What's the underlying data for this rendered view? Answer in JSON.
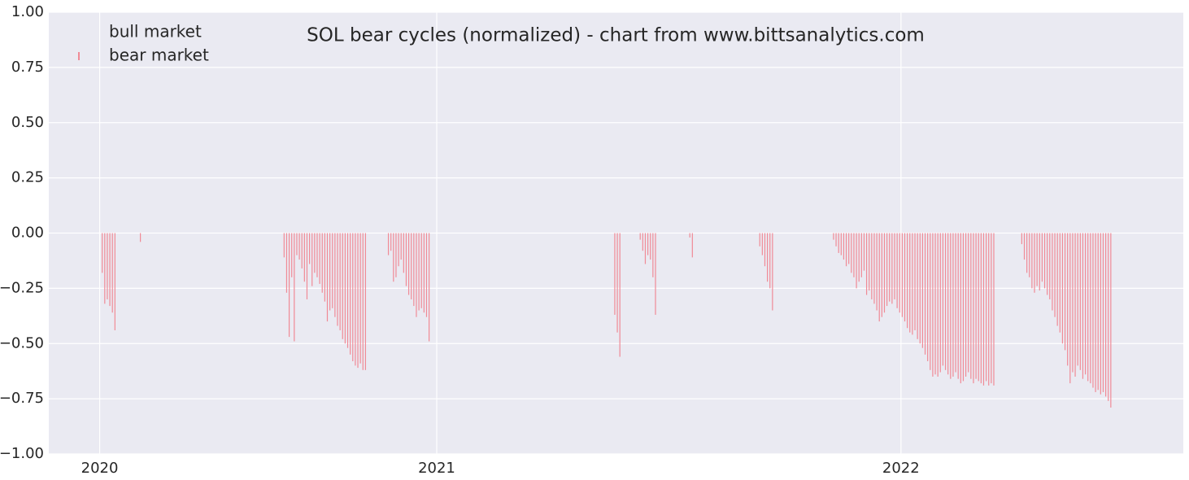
{
  "chart_data": {
    "type": "bar",
    "title": "SOL bear cycles (normalized)  - chart from www.bittsanalytics.com",
    "xlim": [
      0,
      892
    ],
    "xticks": [
      {
        "value": 40,
        "label": "2020"
      },
      {
        "value": 305,
        "label": "2021"
      },
      {
        "value": 670,
        "label": "2022"
      }
    ],
    "ylim": [
      -1,
      1
    ],
    "yticks": [
      {
        "value": -1,
        "label": "−1.00"
      },
      {
        "value": -0.75,
        "label": "−0.75"
      },
      {
        "value": -0.5,
        "label": "−0.50"
      },
      {
        "value": -0.25,
        "label": "−0.25"
      },
      {
        "value": 0,
        "label": "0.00"
      },
      {
        "value": 0.25,
        "label": "0.25"
      },
      {
        "value": 0.5,
        "label": "0.50"
      },
      {
        "value": 0.75,
        "label": "0.75"
      },
      {
        "value": 1,
        "label": "1.00"
      }
    ],
    "grid": true,
    "legend": "upper left",
    "series": [
      {
        "name": "bull market",
        "color": "#eaeaf2",
        "x": [],
        "values": []
      },
      {
        "name": "bear market",
        "color": "#f08a96",
        "x": [
          42,
          44,
          46,
          48,
          50,
          52,
          72,
          185,
          187,
          189,
          191,
          193,
          195,
          197,
          199,
          201,
          203,
          205,
          207,
          209,
          211,
          213,
          215,
          217,
          219,
          221,
          223,
          225,
          227,
          229,
          231,
          233,
          235,
          237,
          239,
          241,
          243,
          245,
          247,
          249,
          267,
          269,
          271,
          273,
          275,
          277,
          279,
          281,
          283,
          285,
          287,
          289,
          291,
          293,
          295,
          297,
          299,
          445,
          447,
          449,
          465,
          467,
          469,
          471,
          473,
          475,
          477,
          504,
          506,
          559,
          561,
          563,
          565,
          567,
          569,
          617,
          619,
          621,
          623,
          625,
          627,
          629,
          631,
          633,
          635,
          637,
          639,
          641,
          643,
          645,
          647,
          649,
          651,
          653,
          655,
          657,
          659,
          661,
          663,
          665,
          667,
          669,
          671,
          673,
          675,
          677,
          679,
          681,
          683,
          685,
          687,
          689,
          691,
          693,
          695,
          697,
          699,
          701,
          703,
          705,
          707,
          709,
          711,
          713,
          715,
          717,
          719,
          721,
          723,
          725,
          727,
          729,
          731,
          733,
          735,
          737,
          739,
          741,
          743,
          765,
          767,
          769,
          771,
          773,
          775,
          777,
          779,
          781,
          783,
          785,
          787,
          789,
          791,
          793,
          795,
          797,
          799,
          801,
          803,
          805,
          807,
          809,
          811,
          813,
          815,
          817,
          819,
          821,
          823,
          825,
          827,
          829,
          831,
          833,
          835
        ],
        "values": [
          -0.18,
          -0.32,
          -0.3,
          -0.33,
          -0.36,
          -0.44,
          -0.04,
          -0.11,
          -0.27,
          -0.47,
          -0.2,
          -0.49,
          -0.1,
          -0.12,
          -0.16,
          -0.22,
          -0.3,
          -0.14,
          -0.24,
          -0.18,
          -0.2,
          -0.23,
          -0.27,
          -0.31,
          -0.4,
          -0.35,
          -0.34,
          -0.38,
          -0.42,
          -0.44,
          -0.48,
          -0.5,
          -0.52,
          -0.55,
          -0.58,
          -0.6,
          -0.61,
          -0.59,
          -0.62,
          -0.62,
          -0.1,
          -0.08,
          -0.22,
          -0.2,
          -0.15,
          -0.12,
          -0.18,
          -0.24,
          -0.28,
          -0.3,
          -0.33,
          -0.38,
          -0.35,
          -0.34,
          -0.36,
          -0.38,
          -0.49,
          -0.37,
          -0.45,
          -0.56,
          -0.03,
          -0.08,
          -0.14,
          -0.1,
          -0.12,
          -0.2,
          -0.37,
          -0.02,
          -0.11,
          -0.06,
          -0.1,
          -0.15,
          -0.22,
          -0.25,
          -0.35,
          -0.03,
          -0.06,
          -0.09,
          -0.1,
          -0.12,
          -0.15,
          -0.14,
          -0.18,
          -0.2,
          -0.25,
          -0.22,
          -0.2,
          -0.17,
          -0.28,
          -0.26,
          -0.3,
          -0.32,
          -0.35,
          -0.4,
          -0.38,
          -0.36,
          -0.33,
          -0.31,
          -0.32,
          -0.3,
          -0.34,
          -0.36,
          -0.38,
          -0.4,
          -0.43,
          -0.45,
          -0.46,
          -0.44,
          -0.48,
          -0.5,
          -0.52,
          -0.55,
          -0.58,
          -0.62,
          -0.65,
          -0.64,
          -0.65,
          -0.63,
          -0.6,
          -0.62,
          -0.64,
          -0.66,
          -0.65,
          -0.63,
          -0.66,
          -0.68,
          -0.67,
          -0.65,
          -0.63,
          -0.66,
          -0.68,
          -0.66,
          -0.67,
          -0.68,
          -0.69,
          -0.67,
          -0.69,
          -0.68,
          -0.69,
          -0.05,
          -0.12,
          -0.18,
          -0.2,
          -0.25,
          -0.27,
          -0.24,
          -0.26,
          -0.22,
          -0.25,
          -0.28,
          -0.3,
          -0.35,
          -0.38,
          -0.42,
          -0.45,
          -0.5,
          -0.53,
          -0.6,
          -0.68,
          -0.63,
          -0.65,
          -0.6,
          -0.62,
          -0.66,
          -0.64,
          -0.67,
          -0.68,
          -0.7,
          -0.72,
          -0.71,
          -0.73,
          -0.72,
          -0.74,
          -0.76,
          -0.79
        ]
      }
    ]
  }
}
